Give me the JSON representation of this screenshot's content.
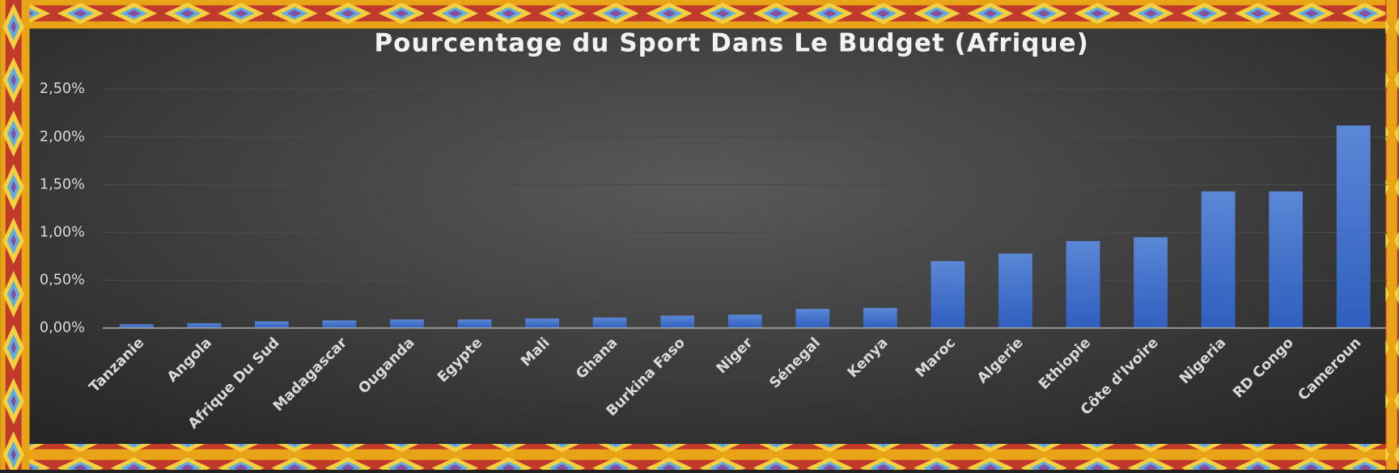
{
  "chart_data": {
    "type": "bar",
    "title": "Pourcentage du Sport Dans Le Budget (Afrique)",
    "categories": [
      "Tanzanie",
      "Angola",
      "Afrique Du Sud",
      "Madagascar",
      "Ouganda",
      "Egypte",
      "Mali",
      "Ghana",
      "Burkina Faso",
      "Niger",
      "Sénegal",
      "Kenya",
      "Maroc",
      "Algerie",
      "Ethiopie",
      "Côte d'Ivoire",
      "Nigeria",
      "RD Congo",
      "Cameroun"
    ],
    "values": [
      0.04,
      0.05,
      0.07,
      0.08,
      0.09,
      0.09,
      0.1,
      0.11,
      0.13,
      0.14,
      0.2,
      0.21,
      0.7,
      0.78,
      0.91,
      0.95,
      1.43,
      1.43,
      2.12
    ],
    "color": "#4472c4",
    "ylim": [
      0,
      2.5
    ],
    "yticks": [
      {
        "value": 0,
        "label": "0,00%"
      },
      {
        "value": 0.5,
        "label": "0,50%"
      },
      {
        "value": 1,
        "label": "1,00%"
      },
      {
        "value": 1.5,
        "label": "1,50%"
      },
      {
        "value": 2,
        "label": "2,00%"
      },
      {
        "value": 2.5,
        "label": "2,50%"
      }
    ],
    "grid": true
  }
}
